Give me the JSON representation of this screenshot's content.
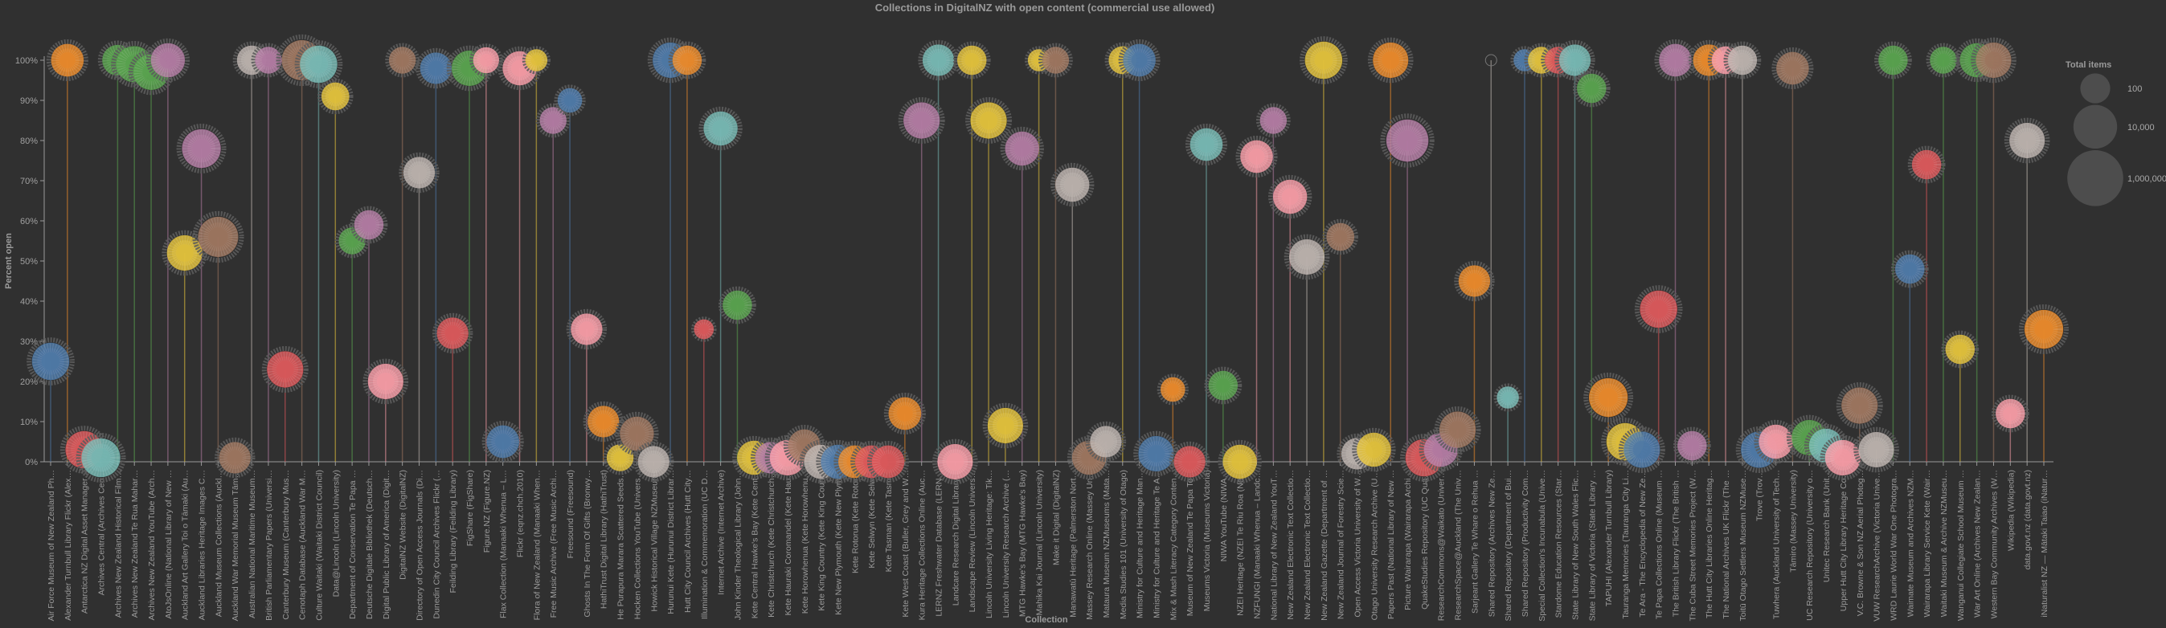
{
  "chart_data": {
    "type": "scatter",
    "title": "Collections in DigitalNZ with open content (commercial use allowed)",
    "xlabel": "Collection",
    "ylabel": "Percent open",
    "ylim": [
      0,
      100
    ],
    "yticks": [
      "0%",
      "10%",
      "20%",
      "30%",
      "40%",
      "50%",
      "60%",
      "70%",
      "80%",
      "90%",
      "100%"
    ],
    "ytick_values": [
      0,
      10,
      20,
      30,
      40,
      50,
      60,
      70,
      80,
      90,
      100
    ],
    "size_legend": {
      "title": "Total items",
      "placement": "top-right",
      "entries": [
        {
          "label": "100",
          "value": 100
        },
        {
          "label": "10,000",
          "value": 10000
        },
        {
          "label": "1,000,000",
          "value": 1000000
        }
      ]
    },
    "palette": {
      "blue": "#4e79a7",
      "orange": "#e8892b",
      "red": "#d9585a",
      "teal": "#76b7b2",
      "green": "#59a14f",
      "yellow": "#e0c03c",
      "purple": "#b07aa1",
      "pink": "#f39aa4",
      "brown": "#9c755f",
      "grey": "#bab0ac"
    },
    "points": [
      {
        "label": "Air Force Museum of New Zealand Ph…",
        "percent": 25,
        "total": 50000,
        "color": "blue"
      },
      {
        "label": "Alexander Turnbull Library Flickr (Alex…",
        "percent": 100,
        "total": 5000,
        "color": "orange"
      },
      {
        "label": "Antarctica NZ Digital Asset Manager…",
        "percent": 3,
        "total": 50000,
        "color": "red"
      },
      {
        "label": "Archives Central (Archives Cen…",
        "percent": 1,
        "total": 100000,
        "color": "teal"
      },
      {
        "label": "Archives New Zealand Historical Film…",
        "percent": 100,
        "total": 2000,
        "color": "green"
      },
      {
        "label": "Archives New Zealand Te Rua Mahar…",
        "percent": 99,
        "total": 30000,
        "color": "green"
      },
      {
        "label": "Archives New Zealand YouTube (Arch…",
        "percent": 97,
        "total": 20000,
        "color": "green"
      },
      {
        "label": "AtoJsOnline (National Library of New …",
        "percent": 100,
        "total": 10000,
        "color": "purple"
      },
      {
        "label": "Auckland Art Gallery Toi o Tāmaki (Au…",
        "percent": 52,
        "total": 20000,
        "color": "yellow"
      },
      {
        "label": "Auckland Libraries Heritage Images C…",
        "percent": 78,
        "total": 100000,
        "color": "purple"
      },
      {
        "label": "Auckland Museum Collections (Auckl…",
        "percent": 56,
        "total": 200000,
        "color": "brown"
      },
      {
        "label": "Auckland War Memorial Museum Tām…",
        "percent": 1,
        "total": 3000,
        "color": "brown"
      },
      {
        "label": "Australian National Maritime Museum…",
        "percent": 100,
        "total": 1000,
        "color": "grey"
      },
      {
        "label": "British Parliamentary Papers (Universi…",
        "percent": 100,
        "total": 300,
        "color": "purple"
      },
      {
        "label": "Canterbury Museum (Canterbury Mus…",
        "percent": 23,
        "total": 30000,
        "color": "red"
      },
      {
        "label": "Cenotaph Database (Auckland War M…",
        "percent": 100,
        "total": 200000,
        "color": "brown"
      },
      {
        "label": "Culture Waitaki (Waitaki District Council)",
        "percent": 99,
        "total": 50000,
        "color": "teal"
      },
      {
        "label": "Data@Lincoln (Lincoln University)",
        "percent": 91,
        "total": 500,
        "color": "yellow"
      },
      {
        "label": "Department of Conservation Te Papa …",
        "percent": 55,
        "total": 300,
        "color": "green"
      },
      {
        "label": "Deutsche Digitale Bibliothek (Deutsch…",
        "percent": 59,
        "total": 1000,
        "color": "purple"
      },
      {
        "label": "Digital Public Library of America (Digit…",
        "percent": 20,
        "total": 20000,
        "color": "pink"
      },
      {
        "label": "DigitalNZ Website (DigitalNZ)",
        "percent": 100,
        "total": 300,
        "color": "brown"
      },
      {
        "label": "Directory of Open Access Journals (Di…",
        "percent": 72,
        "total": 3000,
        "color": "grey"
      },
      {
        "label": "Dunedin City Council Archives Flickr (…",
        "percent": 98,
        "total": 3000,
        "color": "blue"
      },
      {
        "label": "Feilding Library (Feilding Library)",
        "percent": 32,
        "total": 3000,
        "color": "red"
      },
      {
        "label": "FigShare (FigShare)",
        "percent": 98,
        "total": 20000,
        "color": "green"
      },
      {
        "label": "Figure.NZ (Figure.NZ)",
        "percent": 100,
        "total": 200,
        "color": "pink"
      },
      {
        "label": "Flax Collection (Manaaki Whenua – L…",
        "percent": 5,
        "total": 5000,
        "color": "blue"
      },
      {
        "label": "Flickr (eqnz.chch.2010)",
        "percent": 98,
        "total": 10000,
        "color": "pink"
      },
      {
        "label": "Flora of New Zealand (Manaaki When…",
        "percent": 100,
        "total": 30,
        "color": "yellow"
      },
      {
        "label": "Free Music Archive (Free Music Archi…",
        "percent": 85,
        "total": 300,
        "color": "purple"
      },
      {
        "label": "Freesound (Freesound)",
        "percent": 90,
        "total": 100,
        "color": "blue"
      },
      {
        "label": "Ghosts In The Form Of Gifts (Bronwy…",
        "percent": 33,
        "total": 3000,
        "color": "pink"
      },
      {
        "label": "HathiTrust Digital Library (HathiTrust)",
        "percent": 10,
        "total": 3000,
        "color": "orange"
      },
      {
        "label": "He Purapura Marara Scattered Seeds…",
        "percent": 1,
        "total": 300,
        "color": "yellow"
      },
      {
        "label": "Hocken Collections YouTube (Univers…",
        "percent": 7,
        "total": 10000,
        "color": "brown"
      },
      {
        "label": "Howick Historical Village NZMuseums",
        "percent": 0,
        "total": 3000,
        "color": "grey"
      },
      {
        "label": "Hurunui Kete (Hurunui District Librar…",
        "percent": 100,
        "total": 20000,
        "color": "blue"
      },
      {
        "label": "Hutt City Council Archives (Hutt City…",
        "percent": 100,
        "total": 1000,
        "color": "orange"
      },
      {
        "label": "Illumination & Commemoration (UC D…",
        "percent": 33,
        "total": 10,
        "color": "red"
      },
      {
        "label": "Internet Archive (Internet Archive)",
        "percent": 83,
        "total": 10000,
        "color": "teal"
      },
      {
        "label": "John Kinder Theological Library (John…",
        "percent": 39,
        "total": 1000,
        "color": "green"
      },
      {
        "label": "Kete Central Hawke's Bay (Kete Cent…",
        "percent": 1,
        "total": 10000,
        "color": "yellow"
      },
      {
        "label": "Kete Christchurch (Kete Christchurch…",
        "percent": 1,
        "total": 3000,
        "color": "purple"
      },
      {
        "label": "Kete Hauraki Coromandel (Kete Hau…",
        "percent": 1,
        "total": 20000,
        "color": "pink"
      },
      {
        "label": "Kete Horowhenua (Kete Horowhenu…",
        "percent": 4,
        "total": 5000,
        "color": "brown"
      },
      {
        "label": "Kete King Country (Kete King Coun…",
        "percent": 0,
        "total": 10000,
        "color": "grey"
      },
      {
        "label": "Kete New Plymouth (Kete New Plym…",
        "percent": 0,
        "total": 10000,
        "color": "blue"
      },
      {
        "label": "Kete Rotorua (Kete Rotor…",
        "percent": 0,
        "total": 5000,
        "color": "orange"
      },
      {
        "label": "Kete Selwyn (Kete Selw…",
        "percent": 0,
        "total": 5000,
        "color": "red"
      },
      {
        "label": "Kete Tasman (Kete Tasm…",
        "percent": 0,
        "total": 5000,
        "color": "red"
      },
      {
        "label": "Kete West Coast (Buller, Grey and W…",
        "percent": 12,
        "total": 5000,
        "color": "orange"
      },
      {
        "label": "Kura Heritage Collections Online (Auc…",
        "percent": 85,
        "total": 30000,
        "color": "purple"
      },
      {
        "label": "LERNZ Freshwater Database (LERN…",
        "percent": 100,
        "total": 3000,
        "color": "teal"
      },
      {
        "label": "Landcare Research Digital Library…",
        "percent": 0,
        "total": 20000,
        "color": "pink"
      },
      {
        "label": "Landscape Review (Lincoln Univers…",
        "percent": 100,
        "total": 1000,
        "color": "yellow"
      },
      {
        "label": "Lincoln University Living Heritage: Tik…",
        "percent": 85,
        "total": 30000,
        "color": "yellow"
      },
      {
        "label": "Lincoln University Research Archive (…",
        "percent": 9,
        "total": 20000,
        "color": "yellow"
      },
      {
        "label": "MTG Hawke's Bay (MTG Hawke's Bay)",
        "percent": 78,
        "total": 10000,
        "color": "purple"
      },
      {
        "label": "Mahika Kai Journal (Lincoln University)",
        "percent": 100,
        "total": 30,
        "color": "yellow"
      },
      {
        "label": "Make it Digital (DigitalNZ)",
        "percent": 100,
        "total": 300,
        "color": "brown"
      },
      {
        "label": "Manawatū Heritage (Palmerston Nort…",
        "percent": 69,
        "total": 10000,
        "color": "grey"
      },
      {
        "label": "Massey Research Online (Massey Un…",
        "percent": 1,
        "total": 10000,
        "color": "brown"
      },
      {
        "label": "Mataura Museum NZMuseums (Mata…",
        "percent": 5,
        "total": 3000,
        "color": "grey"
      },
      {
        "label": "Media Studies 101 (University of Otago)",
        "percent": 100,
        "total": 500,
        "color": "yellow"
      },
      {
        "label": "Ministry for Culture and Heritage Man…",
        "percent": 100,
        "total": 5000,
        "color": "blue"
      },
      {
        "label": "Ministry for Culture and Heritage Te A…",
        "percent": 2,
        "total": 20000,
        "color": "blue"
      },
      {
        "label": "Mix & Mash Literacy Category Conten…",
        "percent": 18,
        "total": 100,
        "color": "orange"
      },
      {
        "label": "Museum of New Zealand Te Papa To…",
        "percent": 0,
        "total": 3000,
        "color": "red"
      },
      {
        "label": "Museums Victoria (Museums Victoria)",
        "percent": 79,
        "total": 5000,
        "color": "teal"
      },
      {
        "label": "NIWA YouTube (NIWA…",
        "percent": 19,
        "total": 1000,
        "color": "green"
      },
      {
        "label": "NZEI Heritage (NZEI Te Riu Roa (Ne…",
        "percent": 0,
        "total": 10000,
        "color": "yellow"
      },
      {
        "label": "NZFUNGI (Manaaki Whenua – Landc…",
        "percent": 76,
        "total": 5000,
        "color": "pink"
      },
      {
        "label": "National Library of New Zealand YouT…",
        "percent": 85,
        "total": 300,
        "color": "purple"
      },
      {
        "label": "New Zealand Electronic Text Collectio…",
        "percent": 66,
        "total": 10000,
        "color": "pink"
      },
      {
        "label": "New Zealand Electronic Text Collectio…",
        "percent": 51,
        "total": 20000,
        "color": "grey"
      },
      {
        "label": "New Zealand Gazette (Department of …",
        "percent": 100,
        "total": 50000,
        "color": "yellow"
      },
      {
        "label": "New Zealand Journal of Forestry Scie…",
        "percent": 56,
        "total": 500,
        "color": "brown"
      },
      {
        "label": "Open Access Victoria University of W…",
        "percent": 2,
        "total": 3000,
        "color": "grey"
      },
      {
        "label": "Otago University Research Archive (U…",
        "percent": 3,
        "total": 10000,
        "color": "yellow"
      },
      {
        "label": "Papers Past (National Library of New …",
        "percent": 100,
        "total": 20000,
        "color": "orange"
      },
      {
        "label": "Picture Wairarapa (Wairarapa Archi…",
        "percent": 80,
        "total": 500000,
        "color": "purple"
      },
      {
        "label": "QuakeStudies Repository (UC Qua…",
        "percent": 1,
        "total": 50000,
        "color": "red"
      },
      {
        "label": "ResearchCommons@Waikato (Univer…",
        "percent": 3,
        "total": 10000,
        "color": "purple"
      },
      {
        "label": "ResearchSpace@Auckland (The Univ…",
        "percent": 8,
        "total": 30000,
        "color": "brown"
      },
      {
        "label": "Sarjeant Gallery Te Whare o Rehua …",
        "percent": 45,
        "total": 3000,
        "color": "orange"
      },
      {
        "label": "Shared Repository (Archives New Ze…",
        "percent": 100,
        "total": 1,
        "color": "grey"
      },
      {
        "label": "Shared Repository (Department of Bui…",
        "percent": 16,
        "total": 30,
        "color": "teal"
      },
      {
        "label": "Shared Repository (Productivity Com…",
        "percent": 100,
        "total": 30,
        "color": "blue"
      },
      {
        "label": "Special Collection's Incunabula (Unive…",
        "percent": 100,
        "total": 300,
        "color": "yellow"
      },
      {
        "label": "Stardome Education Resources (Star…",
        "percent": 100,
        "total": 300,
        "color": "red"
      },
      {
        "label": "State Library of New South Wales Flic…",
        "percent": 100,
        "total": 3000,
        "color": "teal"
      },
      {
        "label": "State Library of Victoria (State Library …",
        "percent": 93,
        "total": 1000,
        "color": "green"
      },
      {
        "label": "TAPUHI (Alexander Turnbull Library)",
        "percent": 16,
        "total": 100000,
        "color": "orange"
      },
      {
        "label": "Tauranga Memories (Tauranga City Li…",
        "percent": 5,
        "total": 50000,
        "color": "yellow"
      },
      {
        "label": "Te Ara - The Encyclopedia of New Ze…",
        "percent": 3,
        "total": 30000,
        "color": "blue"
      },
      {
        "label": "Te Papa Collections Online (Museum …",
        "percent": 38,
        "total": 50000,
        "color": "red"
      },
      {
        "label": "The British Library Flickr (The British …",
        "percent": 100,
        "total": 5000,
        "color": "purple"
      },
      {
        "label": "The Cuba Street Memories Project (W…",
        "percent": 4,
        "total": 1000,
        "color": "purple"
      },
      {
        "label": "The Hutt City Libraries Online Heritag…",
        "percent": 100,
        "total": 3000,
        "color": "orange"
      },
      {
        "label": "The National Archives UK Flickr (The …",
        "percent": 100,
        "total": 500,
        "color": "pink"
      },
      {
        "label": "Toitū Otago Settlers Museum NZMuse…",
        "percent": 100,
        "total": 1000,
        "color": "grey"
      },
      {
        "label": "Trove (Trov…",
        "percent": 3,
        "total": 30000,
        "color": "blue"
      },
      {
        "label": "Tuwhera (Auckland University of Tech…",
        "percent": 5,
        "total": 10000,
        "color": "pink"
      },
      {
        "label": "Tāmiro (Massey University)",
        "percent": 98,
        "total": 5000,
        "color": "brown"
      },
      {
        "label": "UC Research Repository (University o…",
        "percent": 6,
        "total": 20000,
        "color": "green"
      },
      {
        "label": "Unitec Research Bank (Unit…",
        "percent": 4,
        "total": 10000,
        "color": "teal"
      },
      {
        "label": "Upper Hutt City Library Heritage Co…",
        "percent": 1,
        "total": 20000,
        "color": "pink"
      },
      {
        "label": "V.C. Browne & Son NZ Aerial Photog…",
        "percent": 14,
        "total": 30000,
        "color": "brown"
      },
      {
        "label": "VUW ResearchArchive (Victoria Unive…",
        "percent": 3,
        "total": 20000,
        "color": "grey"
      },
      {
        "label": "WRD Laurie World War One Photogra…",
        "percent": 100,
        "total": 1000,
        "color": "green"
      },
      {
        "label": "Waimate Museum and Archives NZM…",
        "percent": 48,
        "total": 1000,
        "color": "blue"
      },
      {
        "label": "Wairarapa Library Service Kete (Wair…",
        "percent": 74,
        "total": 1000,
        "color": "red"
      },
      {
        "label": "Waitaki Museum & Archive NZMuseu…",
        "percent": 100,
        "total": 300,
        "color": "green"
      },
      {
        "label": "Wanganui Collegiate School Museum …",
        "percent": 28,
        "total": 1000,
        "color": "yellow"
      },
      {
        "label": "War Art Online (Archives New Zealan…",
        "percent": 100,
        "total": 10000,
        "color": "green"
      },
      {
        "label": "Western Bay Community Archives (W…",
        "percent": 100,
        "total": 20000,
        "color": "brown"
      },
      {
        "label": "Wikipedia (Wikipedia)",
        "percent": 12,
        "total": 1000,
        "color": "pink"
      },
      {
        "label": "data.govt.nz (data.govt.nz)",
        "percent": 80,
        "total": 20000,
        "color": "grey"
      },
      {
        "label": "iNaturalist NZ — Mātaki Taiao (iNatur…",
        "percent": 33,
        "total": 100000,
        "color": "orange"
      }
    ]
  }
}
